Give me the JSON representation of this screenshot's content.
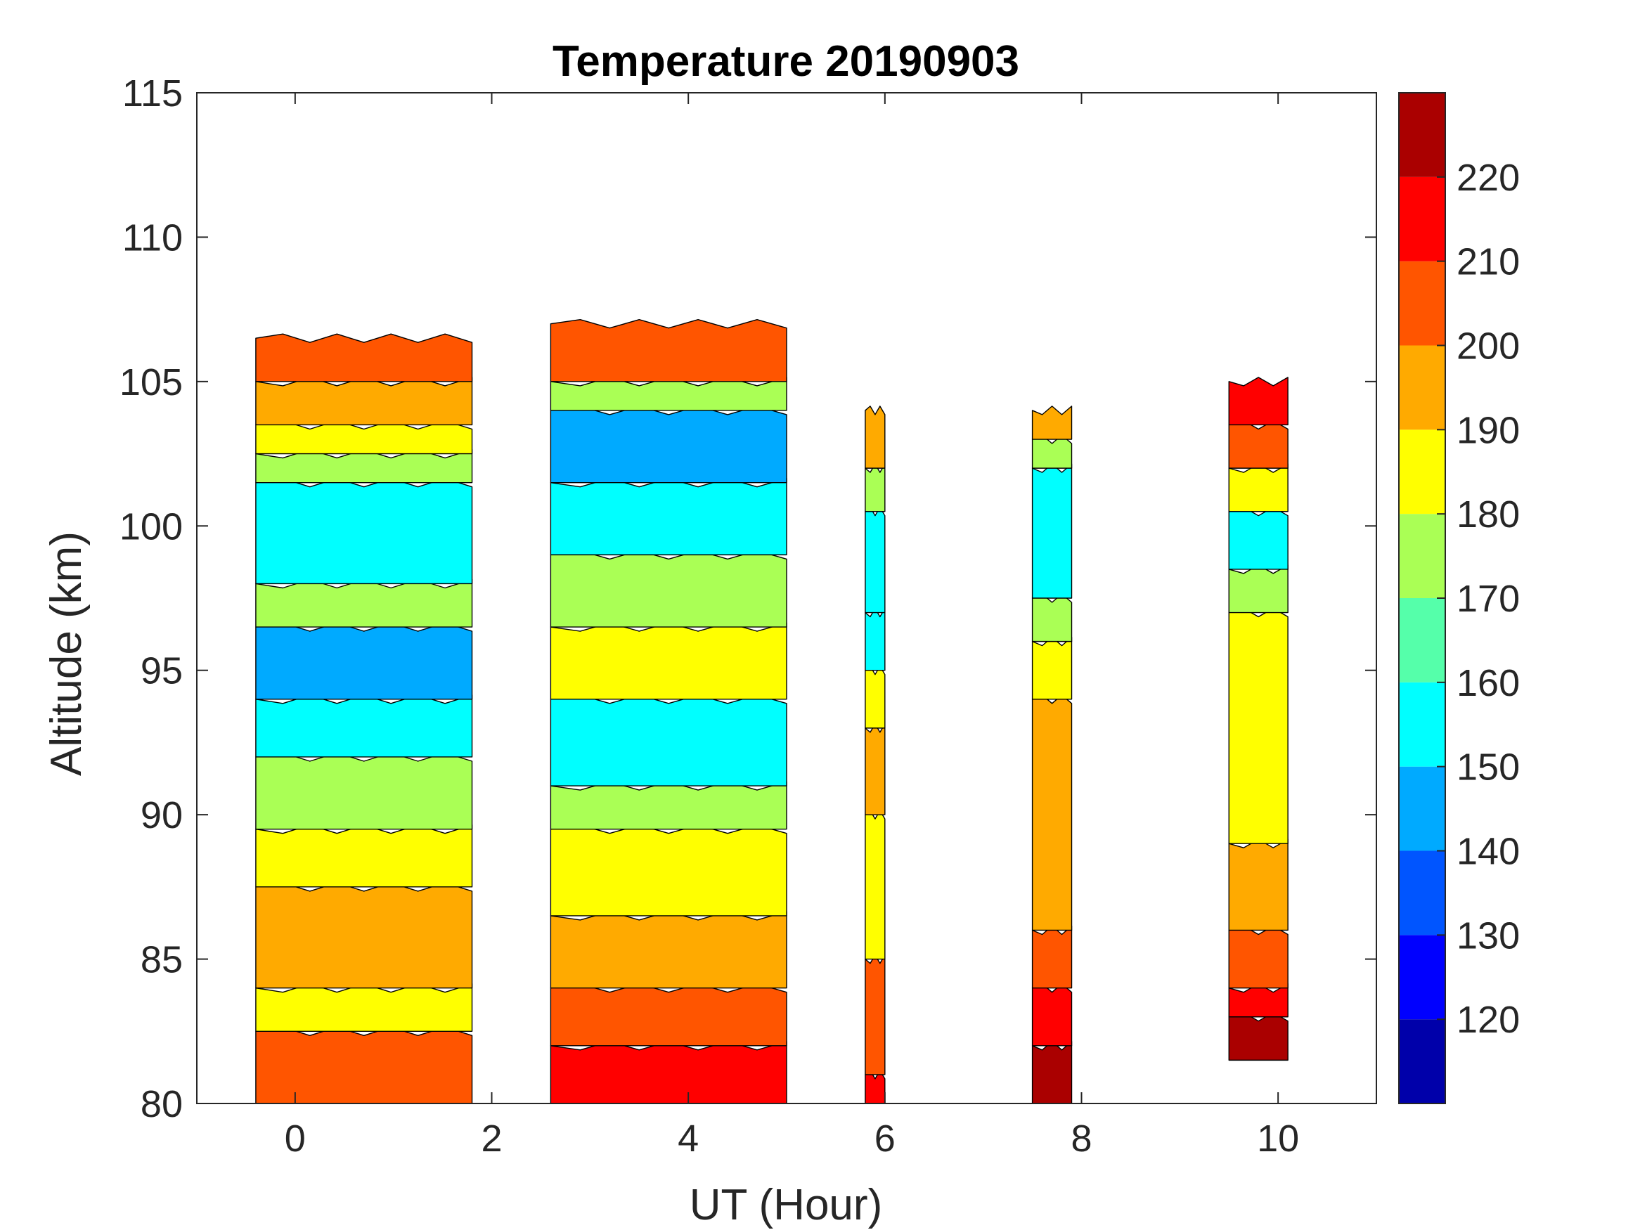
{
  "chart_data": {
    "type": "heatmap",
    "subtype": "filled-contour",
    "title": "Temperature 20190903",
    "xlabel": "UT (Hour)",
    "ylabel": "Altitude (km)",
    "xlim": [
      -1,
      11
    ],
    "ylim": [
      80,
      115
    ],
    "xticks": [
      0,
      2,
      4,
      6,
      8,
      10
    ],
    "yticks": [
      80,
      85,
      90,
      95,
      100,
      105,
      110,
      115
    ],
    "colorbar": {
      "levels": [
        110,
        120,
        130,
        140,
        150,
        160,
        170,
        180,
        190,
        200,
        210,
        220,
        230
      ],
      "tick_labels": [
        120,
        130,
        140,
        150,
        160,
        170,
        180,
        190,
        200,
        210,
        220
      ],
      "colors": [
        "#0000aa",
        "#0000ff",
        "#0055ff",
        "#00aaff",
        "#00ffff",
        "#55ffaa",
        "#aaff55",
        "#ffff00",
        "#ffaa00",
        "#ff5500",
        "#ff0000",
        "#aa0000"
      ]
    },
    "segments": [
      {
        "ut_range": [
          -0.4,
          1.8
        ],
        "top_km": 106.5,
        "bands": [
          {
            "from": 80,
            "to": 82.5,
            "temp": 205
          },
          {
            "from": 82.5,
            "to": 84,
            "temp": 185
          },
          {
            "from": 84,
            "to": 87.5,
            "temp": 195
          },
          {
            "from": 87.5,
            "to": 89.5,
            "temp": 185
          },
          {
            "from": 89.5,
            "to": 92,
            "temp": 175
          },
          {
            "from": 92,
            "to": 94,
            "temp": 155
          },
          {
            "from": 94,
            "to": 96.5,
            "temp": 145
          },
          {
            "from": 96.5,
            "to": 98,
            "temp": 175
          },
          {
            "from": 98,
            "to": 101.5,
            "temp": 155
          },
          {
            "from": 101.5,
            "to": 102.5,
            "temp": 175
          },
          {
            "from": 102.5,
            "to": 103.5,
            "temp": 185
          },
          {
            "from": 103.5,
            "to": 105,
            "temp": 195
          },
          {
            "from": 105,
            "to": 106.5,
            "temp": 205
          }
        ]
      },
      {
        "ut_range": [
          2.6,
          5.0
        ],
        "top_km": 107,
        "bands": [
          {
            "from": 80,
            "to": 82,
            "temp": 215
          },
          {
            "from": 82,
            "to": 84,
            "temp": 205
          },
          {
            "from": 84,
            "to": 86.5,
            "temp": 195
          },
          {
            "from": 86.5,
            "to": 89.5,
            "temp": 185
          },
          {
            "from": 89.5,
            "to": 91,
            "temp": 175
          },
          {
            "from": 91,
            "to": 94,
            "temp": 155
          },
          {
            "from": 94,
            "to": 96.5,
            "temp": 185
          },
          {
            "from": 96.5,
            "to": 99,
            "temp": 175
          },
          {
            "from": 99,
            "to": 101.5,
            "temp": 155
          },
          {
            "from": 101.5,
            "to": 104,
            "temp": 145
          },
          {
            "from": 104,
            "to": 105,
            "temp": 175
          },
          {
            "from": 105,
            "to": 107,
            "temp": 205
          }
        ]
      },
      {
        "ut_range": [
          5.8,
          6.0
        ],
        "top_km": 104,
        "bands": [
          {
            "from": 80,
            "to": 81,
            "temp": 215
          },
          {
            "from": 81,
            "to": 85,
            "temp": 205
          },
          {
            "from": 85,
            "to": 90,
            "temp": 185
          },
          {
            "from": 90,
            "to": 93,
            "temp": 195
          },
          {
            "from": 93,
            "to": 95,
            "temp": 185
          },
          {
            "from": 95,
            "to": 97,
            "temp": 155
          },
          {
            "from": 97,
            "to": 100.5,
            "temp": 155
          },
          {
            "from": 100.5,
            "to": 102,
            "temp": 175
          },
          {
            "from": 102,
            "to": 104,
            "temp": 195
          }
        ]
      },
      {
        "ut_range": [
          7.5,
          7.9
        ],
        "top_km": 104,
        "bands": [
          {
            "from": 80,
            "to": 82,
            "temp": 225
          },
          {
            "from": 82,
            "to": 84,
            "temp": 215
          },
          {
            "from": 84,
            "to": 86,
            "temp": 205
          },
          {
            "from": 86,
            "to": 94,
            "temp": 195
          },
          {
            "from": 94,
            "to": 96,
            "temp": 185
          },
          {
            "from": 96,
            "to": 97.5,
            "temp": 175
          },
          {
            "from": 97.5,
            "to": 102,
            "temp": 155
          },
          {
            "from": 102,
            "to": 103,
            "temp": 175
          },
          {
            "from": 103,
            "to": 104,
            "temp": 195
          }
        ]
      },
      {
        "ut_range": [
          9.5,
          10.1
        ],
        "top_km": 105,
        "bands": [
          {
            "from": 81.5,
            "to": 83,
            "temp": 225
          },
          {
            "from": 83,
            "to": 84,
            "temp": 215
          },
          {
            "from": 84,
            "to": 86,
            "temp": 205
          },
          {
            "from": 86,
            "to": 89,
            "temp": 195
          },
          {
            "from": 89,
            "to": 97,
            "temp": 185
          },
          {
            "from": 97,
            "to": 98.5,
            "temp": 175
          },
          {
            "from": 98.5,
            "to": 100.5,
            "temp": 155
          },
          {
            "from": 100.5,
            "to": 102,
            "temp": 185
          },
          {
            "from": 102,
            "to": 103.5,
            "temp": 205
          },
          {
            "from": 103.5,
            "to": 105,
            "temp": 215
          }
        ]
      }
    ]
  }
}
